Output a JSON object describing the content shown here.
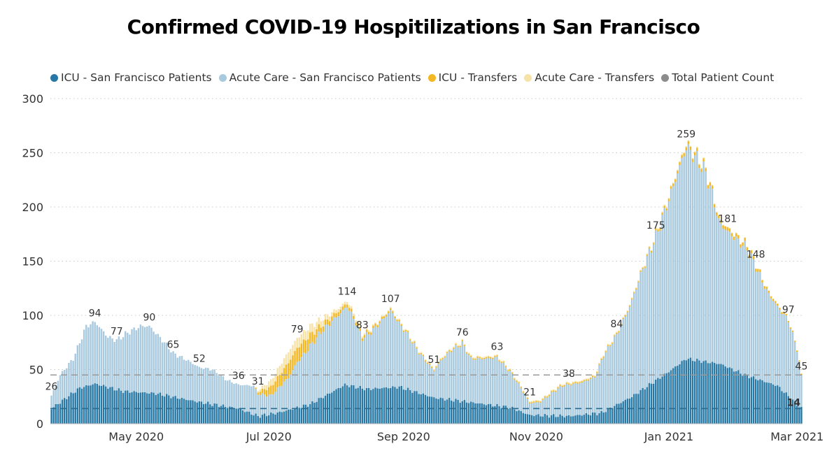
{
  "chart_data": {
    "type": "bar",
    "stacked": true,
    "title": "Confirmed COVID-19 Hospitilizations in San Francisco",
    "xlabel": "",
    "ylabel": "",
    "ylim": [
      0,
      300
    ],
    "yticks": [
      0,
      50,
      100,
      150,
      200,
      250,
      300
    ],
    "x_range": [
      "2020-03-23",
      "2021-03-03"
    ],
    "x_ticks": [
      {
        "date": "2020-05-01",
        "label": "May 2020"
      },
      {
        "date": "2020-07-01",
        "label": "Jul 2020"
      },
      {
        "date": "2020-09-01",
        "label": "Sep 2020"
      },
      {
        "date": "2020-11-01",
        "label": "Nov 2020"
      },
      {
        "date": "2021-01-01",
        "label": "Jan 2021"
      },
      {
        "date": "2021-03-01",
        "label": "Mar 2021"
      }
    ],
    "grid": "horizontal-dotted",
    "legend_position": "top-left",
    "series": [
      {
        "name": "ICU - San Francisco Patients",
        "color": "#2778a5"
      },
      {
        "name": "Acute Care - San Francisco Patients",
        "color": "#a8c9de"
      },
      {
        "name": "ICU - Transfers",
        "color": "#f2b722"
      },
      {
        "name": "Acute Care - Transfers",
        "color": "#f7e2a8"
      },
      {
        "name": "Total Patient Count",
        "color": "#8c8c8c"
      }
    ],
    "total_keypoints": [
      [
        "2020-03-23",
        26
      ],
      [
        "2020-03-27",
        45
      ],
      [
        "2020-04-02",
        60
      ],
      [
        "2020-04-08",
        90
      ],
      [
        "2020-04-12",
        94
      ],
      [
        "2020-04-18",
        80
      ],
      [
        "2020-04-22",
        77
      ],
      [
        "2020-04-27",
        84
      ],
      [
        "2020-05-03",
        90
      ],
      [
        "2020-05-07",
        90
      ],
      [
        "2020-05-14",
        75
      ],
      [
        "2020-05-18",
        65
      ],
      [
        "2020-05-25",
        58
      ],
      [
        "2020-05-30",
        52
      ],
      [
        "2020-06-05",
        50
      ],
      [
        "2020-06-12",
        40
      ],
      [
        "2020-06-17",
        36
      ],
      [
        "2020-06-24",
        35
      ],
      [
        "2020-06-26",
        31
      ],
      [
        "2020-07-02",
        40
      ],
      [
        "2020-07-08",
        60
      ],
      [
        "2020-07-14",
        79
      ],
      [
        "2020-07-20",
        90
      ],
      [
        "2020-07-28",
        100
      ],
      [
        "2020-08-03",
        108
      ],
      [
        "2020-08-06",
        114
      ],
      [
        "2020-08-10",
        98
      ],
      [
        "2020-08-13",
        83
      ],
      [
        "2020-08-17",
        88
      ],
      [
        "2020-08-22",
        98
      ],
      [
        "2020-08-26",
        107
      ],
      [
        "2020-08-30",
        95
      ],
      [
        "2020-09-03",
        84
      ],
      [
        "2020-09-08",
        68
      ],
      [
        "2020-09-12",
        58
      ],
      [
        "2020-09-15",
        51
      ],
      [
        "2020-09-18",
        60
      ],
      [
        "2020-09-23",
        70
      ],
      [
        "2020-09-28",
        76
      ],
      [
        "2020-10-02",
        62
      ],
      [
        "2020-10-08",
        62
      ],
      [
        "2020-10-14",
        63
      ],
      [
        "2020-10-20",
        50
      ],
      [
        "2020-10-25",
        35
      ],
      [
        "2020-10-29",
        21
      ],
      [
        "2020-11-03",
        22
      ],
      [
        "2020-11-08",
        30
      ],
      [
        "2020-11-13",
        37
      ],
      [
        "2020-11-16",
        38
      ],
      [
        "2020-11-22",
        40
      ],
      [
        "2020-11-28",
        45
      ],
      [
        "2020-12-02",
        65
      ],
      [
        "2020-12-08",
        84
      ],
      [
        "2020-12-14",
        110
      ],
      [
        "2020-12-20",
        145
      ],
      [
        "2020-12-26",
        175
      ],
      [
        "2021-01-01",
        210
      ],
      [
        "2021-01-05",
        235
      ],
      [
        "2021-01-09",
        259
      ],
      [
        "2021-01-14",
        248
      ],
      [
        "2021-01-18",
        235
      ],
      [
        "2021-01-21",
        215
      ],
      [
        "2021-01-24",
        190
      ],
      [
        "2021-01-28",
        181
      ],
      [
        "2021-02-02",
        172
      ],
      [
        "2021-02-06",
        165
      ],
      [
        "2021-02-10",
        148
      ],
      [
        "2021-02-15",
        125
      ],
      [
        "2021-02-20",
        110
      ],
      [
        "2021-02-25",
        97
      ],
      [
        "2021-03-01",
        70
      ],
      [
        "2021-03-03",
        45
      ]
    ],
    "icu_keypoints": [
      [
        "2020-03-23",
        14
      ],
      [
        "2020-04-05",
        33
      ],
      [
        "2020-04-12",
        37
      ],
      [
        "2020-04-25",
        30
      ],
      [
        "2020-05-10",
        28
      ],
      [
        "2020-05-30",
        20
      ],
      [
        "2020-06-17",
        14
      ],
      [
        "2020-06-26",
        7
      ],
      [
        "2020-07-05",
        10
      ],
      [
        "2020-07-20",
        18
      ],
      [
        "2020-08-05",
        36
      ],
      [
        "2020-08-15",
        32
      ],
      [
        "2020-08-30",
        34
      ],
      [
        "2020-09-15",
        24
      ],
      [
        "2020-10-01",
        20
      ],
      [
        "2020-10-20",
        15
      ],
      [
        "2020-10-29",
        8
      ],
      [
        "2020-11-16",
        7
      ],
      [
        "2020-12-01",
        10
      ],
      [
        "2020-12-15",
        25
      ],
      [
        "2021-01-01",
        48
      ],
      [
        "2021-01-09",
        60
      ],
      [
        "2021-01-25",
        55
      ],
      [
        "2021-02-05",
        45
      ],
      [
        "2021-02-20",
        35
      ],
      [
        "2021-03-03",
        14
      ]
    ],
    "transfer_icu_keypoints": [
      [
        "2020-06-24",
        0
      ],
      [
        "2020-07-02",
        8
      ],
      [
        "2020-07-10",
        14
      ],
      [
        "2020-07-18",
        12
      ],
      [
        "2020-07-26",
        5
      ],
      [
        "2020-08-05",
        3
      ],
      [
        "2020-08-20",
        2
      ],
      [
        "2020-09-05",
        1
      ],
      [
        "2020-12-20",
        1
      ],
      [
        "2021-01-09",
        3
      ],
      [
        "2021-02-05",
        3
      ],
      [
        "2021-03-03",
        1
      ]
    ],
    "transfer_acute_keypoints": [
      [
        "2020-06-24",
        0
      ],
      [
        "2020-07-02",
        6
      ],
      [
        "2020-07-10",
        10
      ],
      [
        "2020-07-20",
        8
      ],
      [
        "2020-08-01",
        3
      ],
      [
        "2020-08-20",
        1
      ],
      [
        "2021-01-05",
        1
      ],
      [
        "2021-03-03",
        0
      ]
    ],
    "reference_lines": [
      {
        "series": "Total Patient Count",
        "value": 45,
        "style": "dashed"
      },
      {
        "series": "ICU - San Francisco Patients",
        "value": 14,
        "style": "dashed"
      }
    ],
    "data_labels": [
      {
        "date": "2020-03-23",
        "value": 26,
        "text": "26"
      },
      {
        "date": "2020-04-12",
        "value": 94,
        "text": "94"
      },
      {
        "date": "2020-04-22",
        "value": 77,
        "text": "77"
      },
      {
        "date": "2020-05-07",
        "value": 90,
        "text": "90"
      },
      {
        "date": "2020-05-18",
        "value": 65,
        "text": "65"
      },
      {
        "date": "2020-05-30",
        "value": 52,
        "text": "52"
      },
      {
        "date": "2020-06-17",
        "value": 36,
        "text": "36"
      },
      {
        "date": "2020-06-26",
        "value": 31,
        "text": "31"
      },
      {
        "date": "2020-07-14",
        "value": 79,
        "text": "79"
      },
      {
        "date": "2020-08-06",
        "value": 114,
        "text": "114"
      },
      {
        "date": "2020-08-13",
        "value": 83,
        "text": "83"
      },
      {
        "date": "2020-08-26",
        "value": 107,
        "text": "107"
      },
      {
        "date": "2020-09-15",
        "value": 51,
        "text": "51"
      },
      {
        "date": "2020-09-28",
        "value": 76,
        "text": "76"
      },
      {
        "date": "2020-10-14",
        "value": 63,
        "text": "63"
      },
      {
        "date": "2020-10-29",
        "value": 21,
        "text": "21"
      },
      {
        "date": "2020-11-16",
        "value": 38,
        "text": "38"
      },
      {
        "date": "2020-12-08",
        "value": 84,
        "text": "84"
      },
      {
        "date": "2020-12-26",
        "value": 175,
        "text": "175"
      },
      {
        "date": "2021-01-09",
        "value": 259,
        "text": "259"
      },
      {
        "date": "2021-01-28",
        "value": 181,
        "text": "181"
      },
      {
        "date": "2021-02-10",
        "value": 148,
        "text": "148"
      },
      {
        "date": "2021-02-25",
        "value": 97,
        "text": "97"
      },
      {
        "date": "2021-03-03",
        "value": 45,
        "text": "45"
      },
      {
        "date": "2021-03-02",
        "value": 14,
        "text": "14",
        "bold": true
      }
    ]
  }
}
